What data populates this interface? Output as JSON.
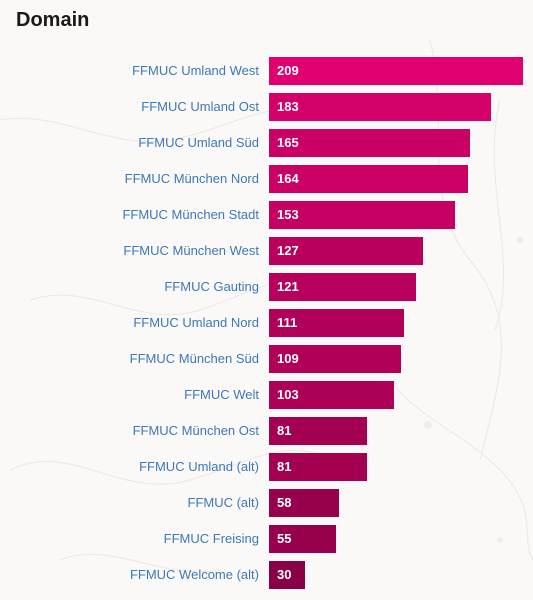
{
  "panel": {
    "title": "Domain"
  },
  "colors": {
    "bar_max": "#e0006f",
    "bar_min": "#8a0046",
    "label": "#3c78b8",
    "background": "#fbf9f7"
  },
  "chart_data": {
    "type": "bar",
    "orientation": "horizontal",
    "title": "Domain",
    "categories": [
      "FFMUC Umland West",
      "FFMUC Umland Ost",
      "FFMUC Umland Süd",
      "FFMUC München Nord",
      "FFMUC München Stadt",
      "FFMUC München West",
      "FFMUC Gauting",
      "FFMUC Umland Nord",
      "FFMUC München Süd",
      "FFMUC Welt",
      "FFMUC München Ost",
      "FFMUC Umland (alt)",
      "FFMUC (alt)",
      "FFMUC Freising",
      "FFMUC Welcome (alt)"
    ],
    "values": [
      209,
      183,
      165,
      164,
      153,
      127,
      121,
      111,
      109,
      103,
      81,
      81,
      58,
      55,
      30
    ],
    "xlim": [
      0,
      209
    ],
    "grid": false,
    "legend": "none"
  }
}
